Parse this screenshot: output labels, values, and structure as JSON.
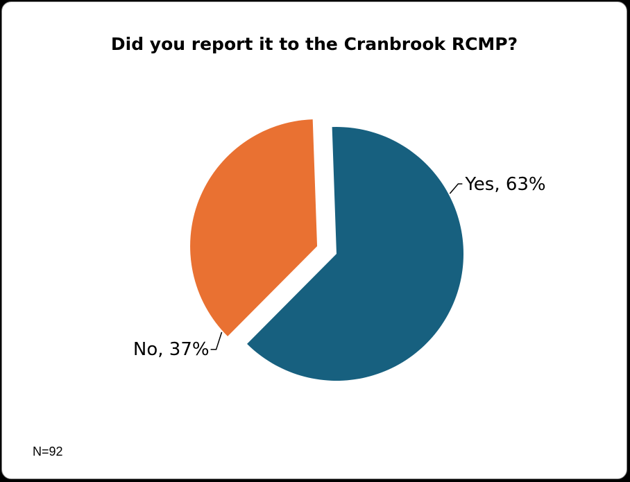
{
  "chart_data": {
    "type": "pie",
    "title": "Did you report it to the Cranbrook RCMP?",
    "slices": [
      {
        "label": "Yes",
        "value": 63,
        "display": "Yes, 63%",
        "color": "#17607f"
      },
      {
        "label": "No",
        "value": 37,
        "display": "No, 37%",
        "color": "#e97132"
      }
    ],
    "exploded_slice": "No",
    "legend": "none",
    "note": "N=92"
  }
}
